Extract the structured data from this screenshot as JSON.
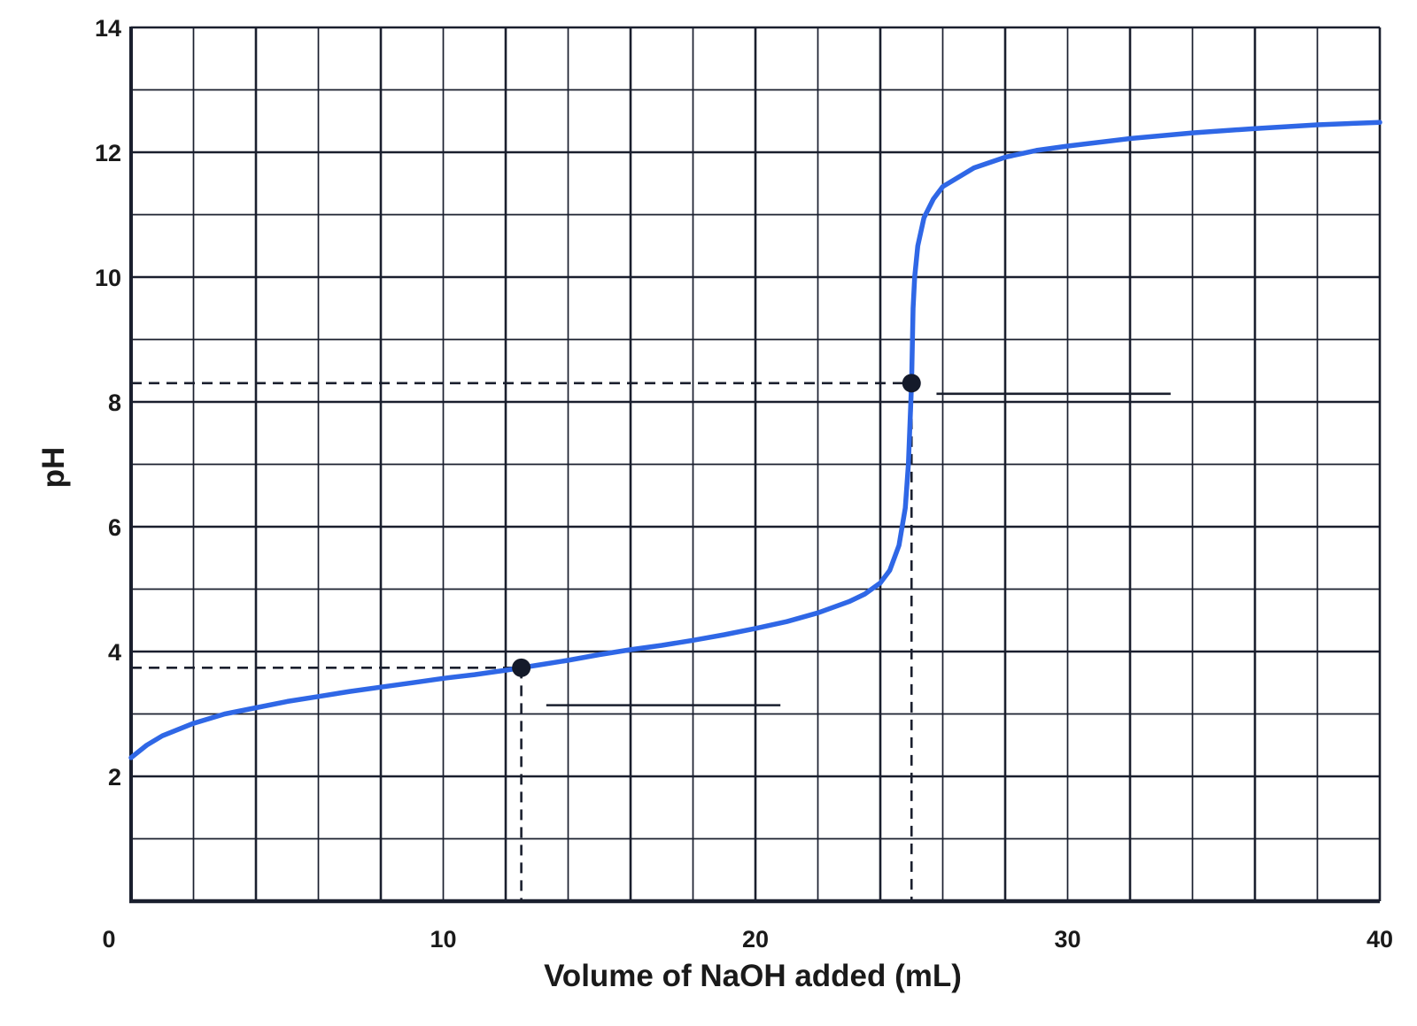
{
  "chart_data": {
    "type": "line",
    "title": "",
    "xlabel": "Volume of NaOH added (mL)",
    "ylabel": "pH",
    "xlim": [
      0,
      40
    ],
    "ylim": [
      0,
      14
    ],
    "x_ticks": [
      0,
      10,
      20,
      30,
      40
    ],
    "y_ticks": [
      2,
      4,
      6,
      8,
      10,
      12,
      14
    ],
    "grid": true,
    "grid_minor_x_step": 2,
    "grid_minor_y_step": 1,
    "colors": {
      "curve": "#2f67e6",
      "grid": "#1a1f2e",
      "marker": "#141a2a"
    },
    "series": [
      {
        "x": [
          0,
          0.5,
          1,
          2,
          3,
          4,
          5,
          6,
          7,
          8,
          9,
          10,
          11,
          12,
          12.5,
          13,
          14,
          15,
          16,
          17,
          18,
          19,
          20,
          21,
          22,
          23,
          23.5,
          24,
          24.3,
          24.6,
          24.8,
          24.9,
          25,
          25.05,
          25.1,
          25.2,
          25.4,
          25.7,
          26,
          27,
          28,
          29,
          30,
          32,
          34,
          36,
          38,
          40
        ],
        "y": [
          2.3,
          2.5,
          2.65,
          2.85,
          3.0,
          3.1,
          3.2,
          3.28,
          3.36,
          3.43,
          3.5,
          3.57,
          3.63,
          3.7,
          3.74,
          3.78,
          3.86,
          3.95,
          4.03,
          4.1,
          4.18,
          4.27,
          4.37,
          4.48,
          4.62,
          4.8,
          4.92,
          5.1,
          5.3,
          5.7,
          6.3,
          7.0,
          8.3,
          9.5,
          10.0,
          10.5,
          10.95,
          11.25,
          11.45,
          11.75,
          11.92,
          12.03,
          12.1,
          12.22,
          12.31,
          12.38,
          12.44,
          12.48
        ]
      }
    ],
    "points": [
      {
        "x": 12.5,
        "y": 3.74
      },
      {
        "x": 25,
        "y": 8.3
      }
    ],
    "answer_blanks": [
      {
        "x_start": 13.3,
        "x_end": 20.8,
        "y": 3.14
      },
      {
        "x_start": 25.8,
        "x_end": 33.3,
        "y": 8.13
      }
    ]
  }
}
